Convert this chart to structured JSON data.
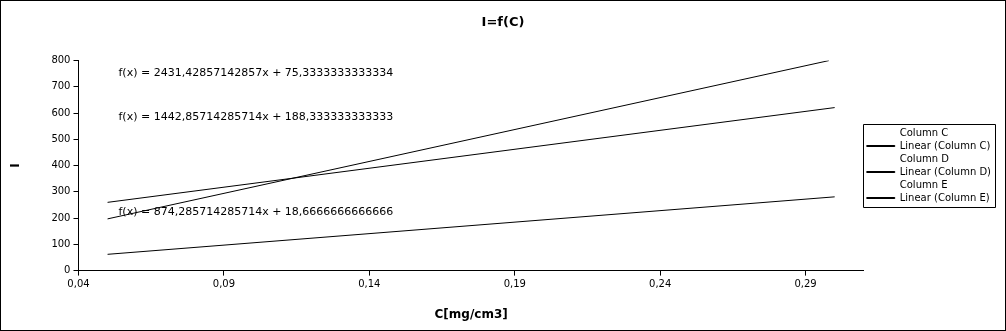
{
  "chart_data": {
    "type": "line",
    "title": "I=f(C)",
    "xlabel": "C[mg/cm3]",
    "ylabel": "I",
    "xlim": [
      0.04,
      0.31
    ],
    "xticks": [
      {
        "value": 0.04,
        "label": "0,04"
      },
      {
        "value": 0.09,
        "label": "0,09"
      },
      {
        "value": 0.14,
        "label": "0,14"
      },
      {
        "value": 0.19,
        "label": "0,19"
      },
      {
        "value": 0.24,
        "label": "0,24"
      },
      {
        "value": 0.29,
        "label": "0,29"
      }
    ],
    "ylim": [
      0,
      800
    ],
    "yticks": [
      0,
      100,
      200,
      300,
      400,
      500,
      600,
      700,
      800
    ],
    "grid": false,
    "legend": "right",
    "marker": "none",
    "line_style": "solid",
    "series": [
      {
        "name": "Column C"
      },
      {
        "name": "Linear (Column C)",
        "color": "#000000",
        "x": [
          0.05,
          0.298
        ],
        "values": [
          197,
          800
        ]
      },
      {
        "name": "Column D"
      },
      {
        "name": "Linear (Column D)",
        "color": "#000000",
        "x": [
          0.05,
          0.3
        ],
        "values": [
          260,
          621
        ]
      },
      {
        "name": "Column E"
      },
      {
        "name": "Linear (Column E)",
        "color": "#000000",
        "x": [
          0.05,
          0.3
        ],
        "values": [
          62,
          281
        ]
      }
    ],
    "annotations": [
      "f(x) = 2431,42857142857x + 75,3333333333334",
      "f(x) = 1442,85714285714x + 188,333333333333",
      "f(x) = 874,285714285714x + 18,6666666666666"
    ]
  }
}
